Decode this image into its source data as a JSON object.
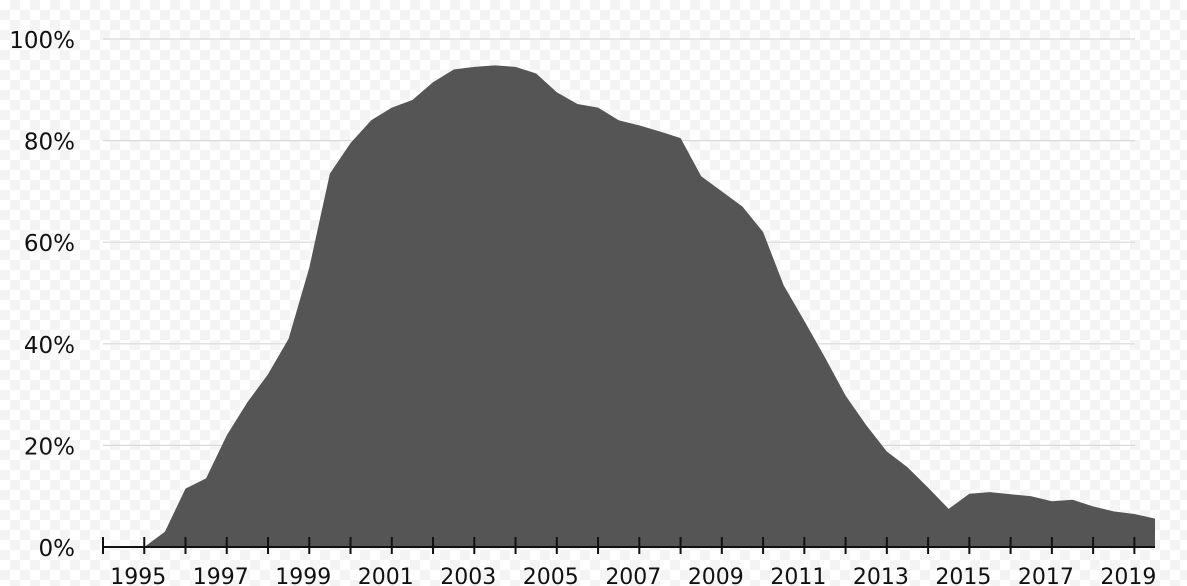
{
  "chart_data": {
    "type": "area",
    "title": "",
    "xlabel": "",
    "ylabel": "",
    "xlim": [
      1994,
      2019.5
    ],
    "ylim": [
      0,
      100
    ],
    "grid": true,
    "y_ticks": [
      0,
      20,
      40,
      60,
      80,
      100
    ],
    "y_tick_labels": [
      "0%",
      "20%",
      "40%",
      "60%",
      "80%",
      "100%"
    ],
    "x_ticks_major": [
      1995,
      1997,
      1999,
      2001,
      2003,
      2005,
      2007,
      2009,
      2011,
      2013,
      2015,
      2017,
      2019
    ],
    "x_tick_labels": [
      "1995",
      "1997",
      "1999",
      "2001",
      "2003",
      "2005",
      "2007",
      "2009",
      "2011",
      "2013",
      "2015",
      "2017",
      "2019"
    ],
    "x_ticks_minor": [
      1994,
      1996,
      1998,
      2000,
      2002,
      2004,
      2006,
      2008,
      2010,
      2012,
      2014,
      2016,
      2018
    ],
    "colors": {
      "area": "#555555",
      "grid": "#d9d9d9",
      "axis": "#111111"
    },
    "series": [
      {
        "x": [
          1995,
          1995.5,
          1996,
          1996.5,
          1997,
          1997.5,
          1998,
          1998.5,
          1999,
          1999.5,
          2000,
          2000.5,
          2001,
          2001.5,
          2002,
          2002.5,
          2003,
          2003.5,
          2004,
          2004.5,
          2005,
          2005.5,
          2006,
          2006.5,
          2007,
          2007.5,
          2008,
          2008.5,
          2009,
          2009.5,
          2010,
          2010.5,
          2011,
          2011.5,
          2012,
          2012.5,
          2013,
          2013.5,
          2014,
          2014.5,
          2015,
          2015.5,
          2016,
          2016.5,
          2017,
          2017.5,
          2018,
          2018.5,
          2019,
          2019.5
        ],
        "values": [
          0,
          3,
          11.5,
          13.5,
          22,
          28.5,
          34,
          41,
          55,
          73.5,
          79.5,
          84,
          86.5,
          88,
          91.5,
          94,
          94.5,
          94.8,
          94.5,
          93.2,
          89.5,
          87.2,
          86.5,
          84,
          83,
          81.8,
          80.5,
          73,
          70,
          67,
          62,
          51.5,
          44.5,
          37.3,
          29.8,
          24,
          18.8,
          15.7,
          11.7,
          7.5,
          10.5,
          10.8,
          10.4,
          10,
          9,
          9.3,
          8,
          7,
          6.5,
          5.6
        ]
      }
    ]
  }
}
